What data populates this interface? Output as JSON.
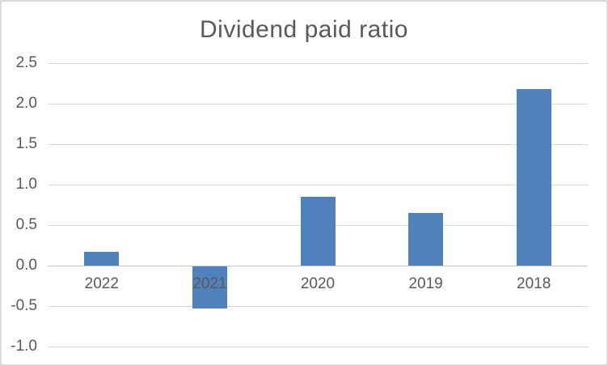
{
  "chart_data": {
    "type": "bar",
    "title": "Dividend paid ratio",
    "categories": [
      "2022",
      "2021",
      "2020",
      "2019",
      "2018"
    ],
    "values": [
      0.17,
      -0.52,
      0.85,
      0.65,
      2.18
    ],
    "xlabel": "",
    "ylabel": "",
    "ylim": [
      -1.0,
      2.5
    ],
    "ytick_step": 0.5,
    "ytick_labels": [
      "2.5",
      "2.0",
      "1.5",
      "1.0",
      "0.5",
      "0.0",
      "-0.5",
      "-1.0"
    ],
    "grid": true,
    "legend": false,
    "series_name": ""
  },
  "colors": {
    "bar": "#4f81bd",
    "gridline": "#d9d9d9",
    "zero_line": "#c6c6c6",
    "text": "#595959",
    "frame_border": "#d9d9d9",
    "background": "#ffffff"
  }
}
